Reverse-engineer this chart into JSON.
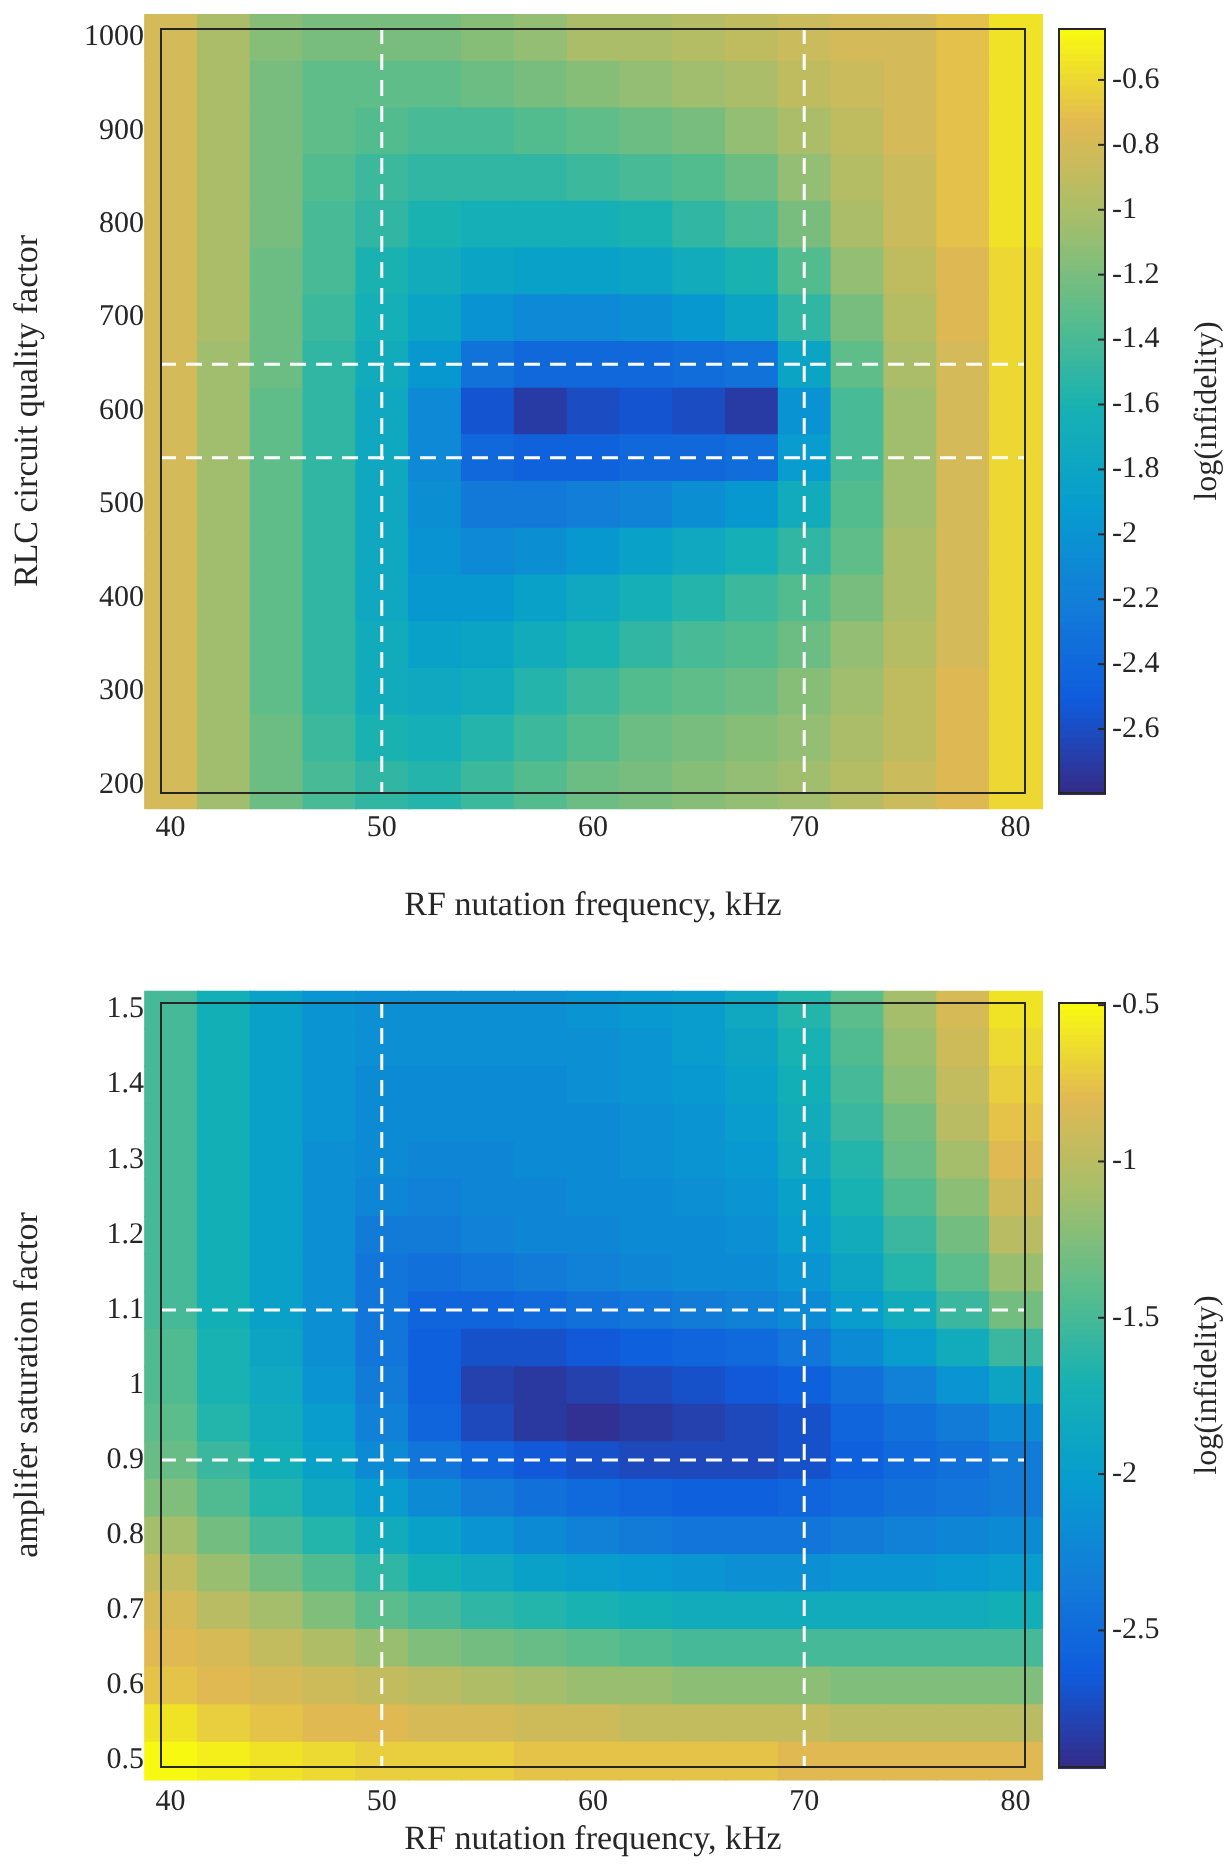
{
  "chart_data": [
    {
      "type": "heatmap",
      "xlabel": "RF nutation frequency, kHz",
      "ylabel": "RLC circuit quality factor",
      "clabel": "log(infidelity)",
      "x": [
        40,
        42.5,
        45,
        47.5,
        50,
        52.5,
        55,
        57.5,
        60,
        62.5,
        65,
        67.5,
        70,
        72.5,
        75,
        77.5,
        80
      ],
      "y": [
        1000,
        950,
        900,
        850,
        800,
        750,
        700,
        650,
        600,
        550,
        500,
        450,
        400,
        350,
        300,
        250,
        200
      ],
      "cells": [
        [
          -0.8,
          -1.0,
          -1.15,
          -1.2,
          -1.2,
          -1.2,
          -1.15,
          -1.1,
          -1.0,
          -1.0,
          -0.95,
          -0.9,
          -0.85,
          -0.8,
          -0.8,
          -0.7,
          -0.55
        ],
        [
          -0.8,
          -1.0,
          -1.2,
          -1.3,
          -1.3,
          -1.3,
          -1.25,
          -1.2,
          -1.15,
          -1.1,
          -1.05,
          -1.0,
          -0.9,
          -0.85,
          -0.8,
          -0.7,
          -0.55
        ],
        [
          -0.8,
          -1.0,
          -1.2,
          -1.3,
          -1.35,
          -1.4,
          -1.4,
          -1.35,
          -1.3,
          -1.25,
          -1.2,
          -1.1,
          -1.0,
          -0.9,
          -0.8,
          -0.7,
          -0.55
        ],
        [
          -0.8,
          -1.0,
          -1.2,
          -1.35,
          -1.45,
          -1.5,
          -1.5,
          -1.5,
          -1.45,
          -1.4,
          -1.35,
          -1.25,
          -1.1,
          -0.95,
          -0.85,
          -0.7,
          -0.55
        ],
        [
          -0.8,
          -1.0,
          -1.2,
          -1.4,
          -1.5,
          -1.6,
          -1.65,
          -1.65,
          -1.65,
          -1.6,
          -1.5,
          -1.4,
          -1.2,
          -1.0,
          -0.85,
          -0.7,
          -0.55
        ],
        [
          -0.8,
          -1.0,
          -1.25,
          -1.4,
          -1.6,
          -1.7,
          -1.8,
          -1.85,
          -1.85,
          -1.8,
          -1.7,
          -1.6,
          -1.35,
          -1.1,
          -0.9,
          -0.75,
          -0.6
        ],
        [
          -0.8,
          -1.0,
          -1.25,
          -1.45,
          -1.65,
          -1.8,
          -2.0,
          -2.1,
          -2.1,
          -2.05,
          -1.95,
          -1.8,
          -1.5,
          -1.2,
          -0.95,
          -0.75,
          -0.6
        ],
        [
          -0.8,
          -1.05,
          -1.25,
          -1.5,
          -1.7,
          -1.95,
          -2.3,
          -2.4,
          -2.4,
          -2.4,
          -2.35,
          -2.3,
          -1.8,
          -1.3,
          -1.0,
          -0.8,
          -0.6
        ],
        [
          -0.8,
          -1.05,
          -1.3,
          -1.5,
          -1.75,
          -2.1,
          -2.55,
          -2.7,
          -2.6,
          -2.55,
          -2.6,
          -2.7,
          -2.0,
          -1.4,
          -1.05,
          -0.8,
          -0.6
        ],
        [
          -0.8,
          -1.05,
          -1.3,
          -1.5,
          -1.75,
          -2.1,
          -2.4,
          -2.45,
          -2.45,
          -2.4,
          -2.4,
          -2.35,
          -1.9,
          -1.4,
          -1.05,
          -0.8,
          -0.6
        ],
        [
          -0.8,
          -1.05,
          -1.3,
          -1.5,
          -1.75,
          -2.05,
          -2.25,
          -2.25,
          -2.2,
          -2.15,
          -2.05,
          -1.95,
          -1.7,
          -1.35,
          -1.05,
          -0.8,
          -0.6
        ],
        [
          -0.8,
          -1.05,
          -1.3,
          -1.5,
          -1.75,
          -2.0,
          -2.1,
          -2.05,
          -1.95,
          -1.85,
          -1.75,
          -1.65,
          -1.5,
          -1.3,
          -1.0,
          -0.8,
          -0.6
        ],
        [
          -0.8,
          -1.05,
          -1.3,
          -1.5,
          -1.75,
          -1.95,
          -1.95,
          -1.85,
          -1.75,
          -1.65,
          -1.55,
          -1.45,
          -1.35,
          -1.2,
          -1.0,
          -0.8,
          -0.6
        ],
        [
          -0.8,
          -1.05,
          -1.3,
          -1.5,
          -1.7,
          -1.85,
          -1.8,
          -1.7,
          -1.6,
          -1.5,
          -1.4,
          -1.35,
          -1.25,
          -1.1,
          -0.95,
          -0.8,
          -0.6
        ],
        [
          -0.8,
          -1.05,
          -1.3,
          -1.5,
          -1.7,
          -1.75,
          -1.7,
          -1.55,
          -1.45,
          -1.35,
          -1.3,
          -1.25,
          -1.15,
          -1.05,
          -0.9,
          -0.75,
          -0.6
        ],
        [
          -0.8,
          -1.05,
          -1.25,
          -1.45,
          -1.6,
          -1.65,
          -1.55,
          -1.45,
          -1.35,
          -1.25,
          -1.2,
          -1.15,
          -1.1,
          -1.0,
          -0.9,
          -0.75,
          -0.6
        ],
        [
          -0.8,
          -1.05,
          -1.25,
          -1.4,
          -1.5,
          -1.55,
          -1.45,
          -1.35,
          -1.25,
          -1.2,
          -1.15,
          -1.1,
          -1.05,
          -0.95,
          -0.85,
          -0.75,
          -0.6
        ]
      ],
      "xlim": [
        39.5,
        80.5
      ],
      "xticks": [
        40,
        50,
        60,
        70,
        80
      ],
      "ylim": [
        190,
        1010
      ],
      "yticks": [
        200,
        300,
        400,
        500,
        600,
        700,
        800,
        900,
        1000
      ],
      "clim": [
        -2.8,
        -0.44
      ],
      "cticks": [
        -2.6,
        -2.4,
        -2.2,
        -2,
        -1.8,
        -1.6,
        -1.4,
        -1.2,
        -1,
        -0.8,
        -0.6
      ],
      "ref_lines": [
        {
          "axis": "x",
          "value": 50,
          "color": "#ffffff",
          "line_style": "dashed"
        },
        {
          "axis": "x",
          "value": 70,
          "color": "#ffffff",
          "line_style": "dashed"
        },
        {
          "axis": "y",
          "value": 550,
          "color": "#ffffff",
          "line_style": "dashed"
        },
        {
          "axis": "y",
          "value": 650,
          "color": "#ffffff",
          "line_style": "dashed"
        }
      ]
    },
    {
      "type": "heatmap",
      "xlabel": "RF nutation frequency, kHz",
      "ylabel": "amplifer saturation factor",
      "clabel": "log(infidelity)",
      "x": [
        40,
        42.5,
        45,
        47.5,
        50,
        52.5,
        55,
        57.5,
        60,
        62.5,
        65,
        67.5,
        70,
        72.5,
        75,
        77.5,
        80
      ],
      "y": [
        1.5,
        1.45,
        1.4,
        1.35,
        1.3,
        1.25,
        1.2,
        1.15,
        1.1,
        1.05,
        1.0,
        0.95,
        0.9,
        0.85,
        0.8,
        0.75,
        0.7,
        0.65,
        0.6,
        0.55,
        0.5
      ],
      "cells": [
        [
          -1.5,
          -1.75,
          -1.95,
          -2.1,
          -2.15,
          -2.15,
          -2.15,
          -2.15,
          -2.1,
          -2.05,
          -2.0,
          -1.85,
          -1.65,
          -1.4,
          -1.1,
          -0.85,
          -0.6
        ],
        [
          -1.5,
          -1.75,
          -1.95,
          -2.1,
          -2.15,
          -2.15,
          -2.15,
          -2.15,
          -2.15,
          -2.1,
          -2.0,
          -1.9,
          -1.7,
          -1.45,
          -1.15,
          -0.9,
          -0.65
        ],
        [
          -1.5,
          -1.75,
          -1.95,
          -2.1,
          -2.2,
          -2.2,
          -2.2,
          -2.2,
          -2.15,
          -2.1,
          -2.05,
          -1.95,
          -1.75,
          -1.5,
          -1.2,
          -0.95,
          -0.7
        ],
        [
          -1.5,
          -1.75,
          -1.95,
          -2.1,
          -2.2,
          -2.2,
          -2.2,
          -2.2,
          -2.2,
          -2.15,
          -2.1,
          -2.0,
          -1.8,
          -1.55,
          -1.3,
          -1.0,
          -0.75
        ],
        [
          -1.5,
          -1.75,
          -1.95,
          -2.15,
          -2.2,
          -2.25,
          -2.25,
          -2.2,
          -2.2,
          -2.15,
          -2.1,
          -2.05,
          -1.85,
          -1.65,
          -1.35,
          -1.1,
          -0.8
        ],
        [
          -1.5,
          -1.75,
          -1.95,
          -2.15,
          -2.25,
          -2.3,
          -2.25,
          -2.25,
          -2.2,
          -2.2,
          -2.15,
          -2.1,
          -1.95,
          -1.7,
          -1.45,
          -1.2,
          -0.9
        ],
        [
          -1.5,
          -1.75,
          -1.95,
          -2.15,
          -2.35,
          -2.35,
          -2.3,
          -2.25,
          -2.25,
          -2.2,
          -2.2,
          -2.15,
          -2.0,
          -1.8,
          -1.55,
          -1.3,
          -1.0
        ],
        [
          -1.5,
          -1.75,
          -1.95,
          -2.15,
          -2.4,
          -2.45,
          -2.4,
          -2.35,
          -2.3,
          -2.25,
          -2.2,
          -2.2,
          -2.1,
          -1.9,
          -1.65,
          -1.4,
          -1.15
        ],
        [
          -1.5,
          -1.75,
          -1.95,
          -2.15,
          -2.4,
          -2.55,
          -2.55,
          -2.5,
          -2.45,
          -2.4,
          -2.35,
          -2.3,
          -2.2,
          -2.0,
          -1.8,
          -1.55,
          -1.3
        ],
        [
          -1.45,
          -1.7,
          -1.9,
          -2.15,
          -2.4,
          -2.6,
          -2.7,
          -2.7,
          -2.65,
          -2.6,
          -2.55,
          -2.5,
          -2.4,
          -2.2,
          -2.0,
          -1.8,
          -1.55
        ],
        [
          -1.45,
          -1.7,
          -1.85,
          -2.1,
          -2.35,
          -2.6,
          -2.8,
          -2.85,
          -2.8,
          -2.75,
          -2.7,
          -2.65,
          -2.6,
          -2.45,
          -2.3,
          -2.1,
          -1.9
        ],
        [
          -1.4,
          -1.65,
          -1.8,
          -2.0,
          -2.3,
          -2.55,
          -2.75,
          -2.85,
          -2.9,
          -2.85,
          -2.8,
          -2.75,
          -2.7,
          -2.55,
          -2.45,
          -2.35,
          -2.2
        ],
        [
          -1.35,
          -1.55,
          -1.75,
          -1.95,
          -2.2,
          -2.4,
          -2.55,
          -2.65,
          -2.7,
          -2.75,
          -2.75,
          -2.75,
          -2.7,
          -2.6,
          -2.5,
          -2.45,
          -2.35
        ],
        [
          -1.25,
          -1.45,
          -1.65,
          -1.85,
          -2.0,
          -2.2,
          -2.35,
          -2.45,
          -2.5,
          -2.55,
          -2.6,
          -2.6,
          -2.55,
          -2.5,
          -2.45,
          -2.4,
          -2.35
        ],
        [
          -1.1,
          -1.3,
          -1.5,
          -1.65,
          -1.8,
          -1.95,
          -2.1,
          -2.2,
          -2.3,
          -2.35,
          -2.4,
          -2.4,
          -2.4,
          -2.35,
          -2.3,
          -2.25,
          -2.2
        ],
        [
          -0.95,
          -1.15,
          -1.3,
          -1.45,
          -1.6,
          -1.75,
          -1.85,
          -1.95,
          -2.0,
          -2.05,
          -2.1,
          -2.15,
          -2.15,
          -2.1,
          -2.1,
          -2.05,
          -2.0
        ],
        [
          -0.85,
          -1.0,
          -1.1,
          -1.25,
          -1.4,
          -1.5,
          -1.6,
          -1.65,
          -1.7,
          -1.75,
          -1.8,
          -1.8,
          -1.8,
          -1.8,
          -1.8,
          -1.8,
          -1.75
        ],
        [
          -0.8,
          -0.85,
          -0.95,
          -1.05,
          -1.15,
          -1.25,
          -1.3,
          -1.35,
          -1.4,
          -1.45,
          -1.5,
          -1.5,
          -1.5,
          -1.5,
          -1.5,
          -1.5,
          -1.5
        ],
        [
          -0.75,
          -0.8,
          -0.85,
          -0.9,
          -0.95,
          -1.0,
          -1.05,
          -1.1,
          -1.15,
          -1.15,
          -1.2,
          -1.2,
          -1.2,
          -1.25,
          -1.25,
          -1.25,
          -1.25
        ],
        [
          -0.6,
          -0.7,
          -0.75,
          -0.8,
          -0.8,
          -0.85,
          -0.85,
          -0.9,
          -0.9,
          -0.95,
          -0.95,
          -0.95,
          -0.95,
          -1.0,
          -1.0,
          -1.0,
          -1.0
        ],
        [
          -0.5,
          -0.55,
          -0.6,
          -0.65,
          -0.7,
          -0.7,
          -0.7,
          -0.75,
          -0.75,
          -0.75,
          -0.75,
          -0.75,
          -0.8,
          -0.8,
          -0.8,
          -0.8,
          -0.8
        ]
      ],
      "xlim": [
        39.5,
        80.5
      ],
      "xticks": [
        40,
        50,
        60,
        70,
        80
      ],
      "ylim": [
        0.49,
        1.51
      ],
      "yticks": [
        0.5,
        0.6,
        0.7,
        0.8,
        0.9,
        1,
        1.1,
        1.2,
        1.3,
        1.4,
        1.5
      ],
      "clim": [
        -2.94,
        -0.49
      ],
      "cticks": [
        -2.5,
        -2,
        -1.5,
        -1,
        -0.5
      ],
      "ref_lines": [
        {
          "axis": "x",
          "value": 50,
          "color": "#ffffff",
          "line_style": "dashed"
        },
        {
          "axis": "x",
          "value": 70,
          "color": "#ffffff",
          "line_style": "dashed"
        },
        {
          "axis": "y",
          "value": 0.9,
          "color": "#ffffff",
          "line_style": "dashed"
        },
        {
          "axis": "y",
          "value": 1.1,
          "color": "#ffffff",
          "line_style": "dashed"
        }
      ]
    }
  ]
}
